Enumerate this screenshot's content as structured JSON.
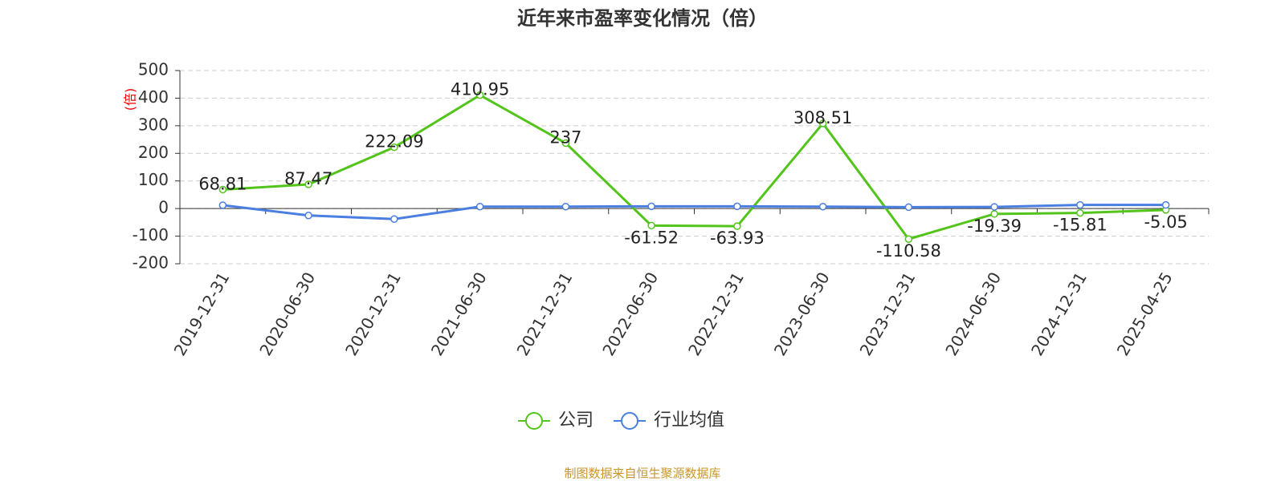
{
  "chart_data": {
    "type": "line",
    "title": "近年来市盈率变化情况（倍）",
    "ylabel": "(倍)",
    "categories": [
      "2019-12-31",
      "2020-06-30",
      "2020-12-31",
      "2021-06-30",
      "2021-12-31",
      "2022-06-30",
      "2022-12-31",
      "2023-06-30",
      "2023-12-31",
      "2024-06-30",
      "2024-12-31",
      "2025-04-25"
    ],
    "series": [
      {
        "name": "公司",
        "color": "#52c41a",
        "values": [
          68.81,
          87.47,
          222.09,
          410.95,
          237,
          -61.52,
          -63.93,
          308.51,
          -110.58,
          -19.39,
          -15.81,
          -5.05
        ],
        "show_labels": true
      },
      {
        "name": "行业均值",
        "color": "#4a7ee0",
        "values": [
          12,
          -25,
          -38,
          7,
          7,
          8,
          8,
          7,
          5,
          6,
          13,
          13
        ],
        "show_labels": false
      }
    ],
    "ylim": [
      -200,
      500
    ],
    "yticks": [
      -200,
      -100,
      0,
      100,
      200,
      300,
      400,
      500
    ],
    "grid": true,
    "legend": "bottom",
    "source": "制图数据来自恒生聚源数据库"
  }
}
